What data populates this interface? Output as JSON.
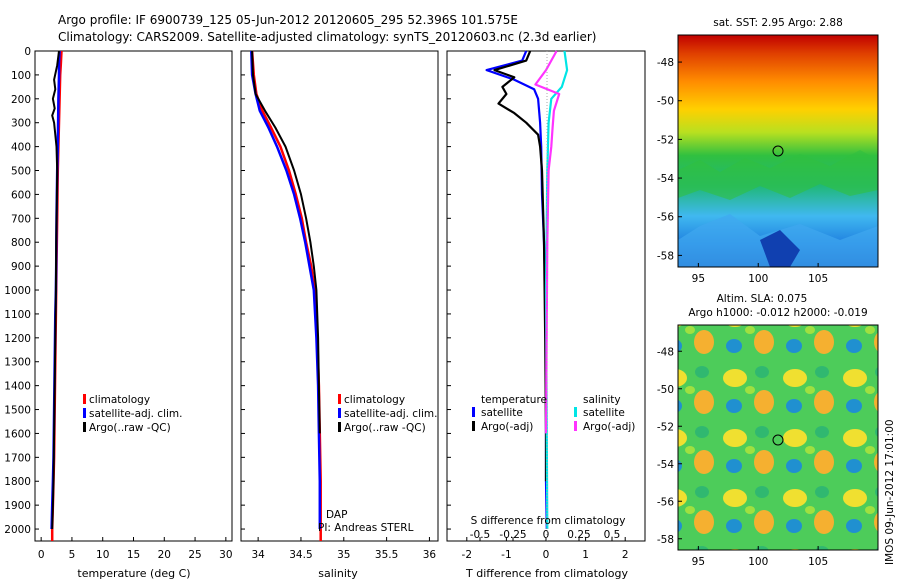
{
  "header": {
    "line1": "Argo profile: IF 6900739_125 05-Jun-2012 20120605_295 52.396S 101.575E",
    "line2": "Climatology: CARS2009. Satellite-adjusted climatology: synTS_20120603.nc (2.3d earlier)"
  },
  "depth_ticks": [
    0,
    100,
    200,
    300,
    400,
    500,
    600,
    700,
    800,
    900,
    1000,
    1100,
    1200,
    1300,
    1400,
    1500,
    1600,
    1700,
    1800,
    1900,
    2000
  ],
  "colors": {
    "climatology": "#ff0000",
    "satellite": "#0000ff",
    "argo": "#000000",
    "satellite_s": "#00e5e5",
    "argo_s": "#ff33ff"
  },
  "panel_temp": {
    "xlabel": "temperature (deg C)",
    "xticks": [
      "0",
      "5",
      "10",
      "15",
      "20",
      "25",
      "30"
    ],
    "legend": [
      "climatology",
      "satellite-adj. clim.",
      "Argo(..raw -QC)"
    ]
  },
  "panel_sal": {
    "xlabel": "salinity",
    "xticks": [
      "34",
      "34.5",
      "35",
      "35.5",
      "36"
    ],
    "legend": [
      "climatology",
      "satellite-adj. clim.",
      "Argo(..raw -QC)"
    ],
    "note1": "DAP",
    "note2": "PI: Andreas STERL"
  },
  "panel_diff": {
    "xlabel_bottom": "T difference from climatology",
    "xticks_bottom": [
      "-2",
      "-1",
      "0",
      "1",
      "2"
    ],
    "xlabel_top": "S difference from climatology",
    "xticks_top": [
      "-0.5",
      "-0.25",
      "0",
      "0.25",
      "0.5"
    ],
    "legend_t_title": "temperature",
    "legend_s_title": "salinity",
    "legend_t": [
      "satellite",
      "Argo(-adj)"
    ],
    "legend_s": [
      "satellite",
      "Argo(-adj)"
    ]
  },
  "map_sst": {
    "title": "sat. SST: 2.95 Argo: 2.88",
    "yticks": [
      "-48",
      "-50",
      "-52",
      "-54",
      "-56",
      "-58"
    ],
    "xticks": [
      "95",
      "100",
      "105"
    ]
  },
  "map_sla": {
    "title1": "Altim. SLA: 0.075",
    "title2": "Argo h1000: -0.012 h2000: -0.019",
    "yticks": [
      "-48",
      "-50",
      "-52",
      "-54",
      "-56",
      "-58"
    ],
    "xticks": [
      "95",
      "100",
      "105"
    ]
  },
  "stamp": "IMOS 09-Jun-2012 17:01:00",
  "chart_data": [
    {
      "type": "line",
      "xlabel": "temperature (deg C)",
      "ylabel": "",
      "xlim": [
        -1,
        31
      ],
      "ylim": [
        2050,
        0
      ],
      "series": [
        {
          "name": "climatology",
          "x": [
            3.3,
            3.2,
            3.1,
            3.0,
            2.9,
            2.8,
            2.7,
            2.6,
            2.5,
            2.45,
            2.4,
            2.3,
            2.2,
            2.1,
            2.0,
            1.9,
            1.8,
            1.8
          ],
          "y": [
            0,
            50,
            100,
            200,
            300,
            400,
            500,
            700,
            900,
            1000,
            1100,
            1300,
            1500,
            1700,
            1800,
            1900,
            2000,
            2050
          ]
        },
        {
          "name": "satellite-adj. clim.",
          "x": [
            3.0,
            2.9,
            2.9,
            2.8,
            2.75,
            2.7,
            2.6,
            2.5,
            2.45,
            2.4,
            2.3,
            2.2,
            2.1,
            2.0,
            1.9,
            1.8,
            1.7
          ],
          "y": [
            0,
            50,
            100,
            200,
            300,
            400,
            500,
            700,
            900,
            1000,
            1100,
            1300,
            1500,
            1700,
            1800,
            1900,
            2000
          ]
        },
        {
          "name": "Argo(..raw -QC)",
          "x": [
            2.9,
            2.6,
            2.1,
            2.3,
            1.9,
            2.2,
            1.8,
            2.1,
            2.3,
            2.5,
            2.6,
            2.55,
            2.45,
            2.4,
            2.3,
            2.2,
            2.1,
            2.0,
            1.9,
            1.8
          ],
          "y": [
            0,
            60,
            120,
            160,
            200,
            240,
            270,
            300,
            350,
            400,
            500,
            600,
            800,
            1000,
            1200,
            1400,
            1600,
            1800,
            1900,
            2000
          ]
        }
      ]
    },
    {
      "type": "line",
      "xlabel": "salinity",
      "ylabel": "",
      "xlim": [
        33.8,
        36.1
      ],
      "ylim": [
        2050,
        0
      ],
      "series": [
        {
          "name": "climatology",
          "x": [
            33.93,
            33.95,
            33.98,
            34.05,
            34.15,
            34.26,
            34.36,
            34.44,
            34.51,
            34.56,
            34.62,
            34.66,
            34.69,
            34.71,
            34.72,
            34.73,
            34.73
          ],
          "y": [
            0,
            100,
            180,
            250,
            320,
            400,
            500,
            600,
            700,
            800,
            900,
            1000,
            1200,
            1400,
            1600,
            1800,
            2050
          ]
        },
        {
          "name": "satellite-adj. clim.",
          "x": [
            33.92,
            33.93,
            33.97,
            34.02,
            34.12,
            34.22,
            34.33,
            34.42,
            34.49,
            34.55,
            34.6,
            34.65,
            34.68,
            34.7,
            34.71,
            34.72,
            34.72
          ],
          "y": [
            0,
            100,
            180,
            250,
            320,
            400,
            500,
            600,
            700,
            800,
            900,
            1000,
            1200,
            1400,
            1600,
            1800,
            2000
          ]
        },
        {
          "name": "Argo(..raw -QC)",
          "x": [
            33.93,
            33.94,
            33.97,
            34.08,
            34.2,
            34.32,
            34.42,
            34.5,
            34.56,
            34.61,
            34.65,
            34.68,
            34.7,
            34.71,
            34.72
          ],
          "y": [
            0,
            100,
            180,
            250,
            320,
            400,
            500,
            600,
            700,
            800,
            900,
            1000,
            1200,
            1400,
            1600
          ]
        }
      ]
    },
    {
      "type": "line",
      "xlabel": "T difference from climatology",
      "ylabel": "",
      "xlim": [
        -2.5,
        2.5
      ],
      "ylim": [
        2050,
        0
      ],
      "series": [
        {
          "name": "temperature satellite",
          "x": [
            -0.5,
            -0.6,
            -1.5,
            -0.8,
            -0.3,
            -0.2,
            -0.15,
            -0.12,
            -0.1,
            -0.05,
            -0.02,
            0.0,
            0.0,
            0.02
          ],
          "y": [
            0,
            40,
            80,
            120,
            160,
            200,
            300,
            400,
            600,
            800,
            1000,
            1400,
            1800,
            2000
          ]
        },
        {
          "name": "temperature Argo(-adj)",
          "x": [
            -0.4,
            -0.5,
            -1.3,
            -0.8,
            -1.1,
            -1.0,
            -1.2,
            -0.8,
            -0.5,
            -0.2,
            -0.15,
            -0.1,
            -0.05,
            -0.02,
            0.0,
            0.0
          ],
          "y": [
            0,
            40,
            80,
            110,
            150,
            180,
            220,
            260,
            300,
            350,
            400,
            500,
            800,
            1200,
            1600,
            1800
          ]
        },
        {
          "name": "salinity satellite",
          "x": [
            0.14,
            0.16,
            0.12,
            0.04,
            0.02,
            0.01,
            0.0,
            0.01
          ],
          "y": [
            0,
            80,
            150,
            200,
            300,
            500,
            1000,
            2000
          ]
        },
        {
          "name": "salinity Argo(-adj)",
          "x": [
            0.08,
            0.0,
            -0.08,
            0.1,
            0.06,
            0.05,
            0.04,
            0.02,
            0.01,
            0.0
          ],
          "y": [
            0,
            80,
            140,
            180,
            250,
            320,
            400,
            500,
            800,
            1600
          ]
        }
      ]
    }
  ]
}
